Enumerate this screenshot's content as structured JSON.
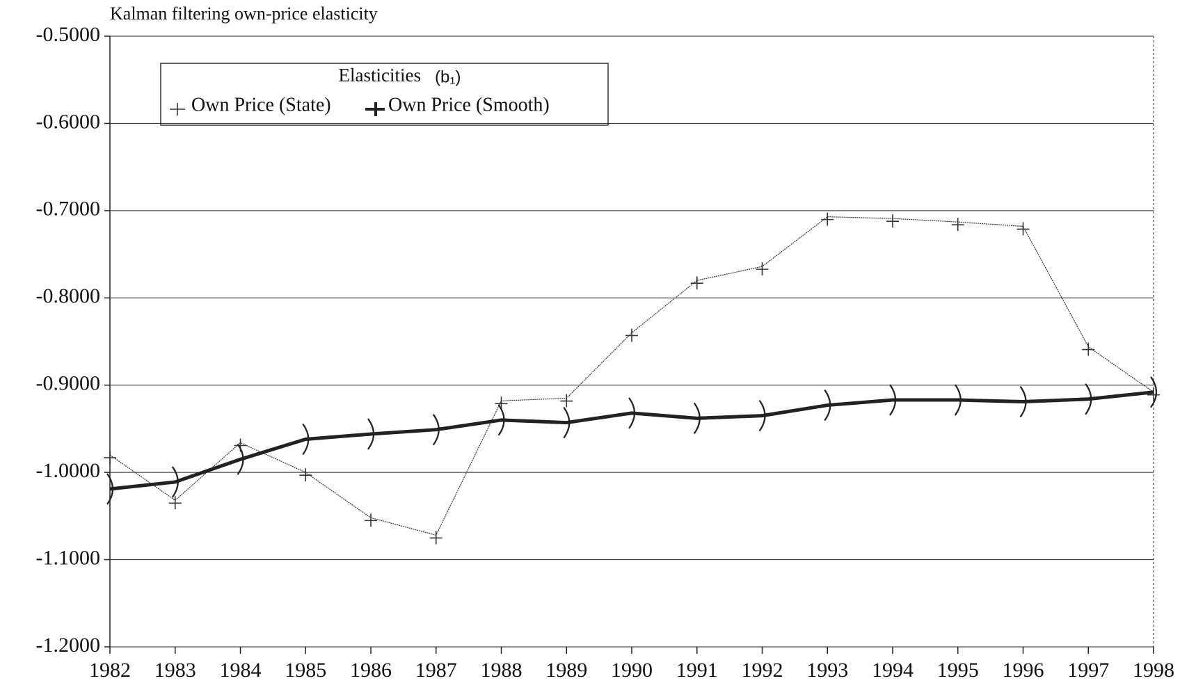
{
  "chart_data": {
    "type": "line",
    "title": "Kalman filtering own-price elasticity",
    "legend_title": "Elasticities",
    "legend_symbol": "(b₁)",
    "categories": [
      "1982",
      "1983",
      "1984",
      "1985",
      "1986",
      "1987",
      "1988",
      "1989",
      "1990",
      "1991",
      "1992",
      "1993",
      "1994",
      "1995",
      "1996",
      "1997",
      "1998"
    ],
    "series": [
      {
        "name": "Own Price (State)",
        "color": "#333333",
        "values": [
          -0.98,
          -1.032,
          -0.966,
          -1.0,
          -1.052,
          -1.072,
          -0.918,
          -0.915,
          -0.84,
          -0.78,
          -0.764,
          -0.707,
          -0.709,
          -0.713,
          -0.718,
          -0.856,
          -0.908
        ]
      },
      {
        "name": "Own Price (Smooth)",
        "color": "#222222",
        "values": [
          -1.019,
          -1.011,
          -0.985,
          -0.962,
          -0.956,
          -0.951,
          -0.94,
          -0.943,
          -0.932,
          -0.938,
          -0.935,
          -0.923,
          -0.917,
          -0.917,
          -0.919,
          -0.916,
          -0.908
        ]
      }
    ],
    "ylim": [
      -1.2,
      -0.5
    ],
    "yticks": [
      {
        "value": -1.2,
        "label": "-1.2000"
      },
      {
        "value": -1.1,
        "label": "-1.1000"
      },
      {
        "value": -1.0,
        "label": "-1.0000"
      },
      {
        "value": -0.9,
        "label": "-0.9000"
      },
      {
        "value": -0.8,
        "label": "-0.8000"
      },
      {
        "value": -0.7,
        "label": "-0.7000"
      },
      {
        "value": -0.6,
        "label": "-0.6000"
      },
      {
        "value": -0.5,
        "label": "-0.5000"
      }
    ],
    "grid": true
  }
}
